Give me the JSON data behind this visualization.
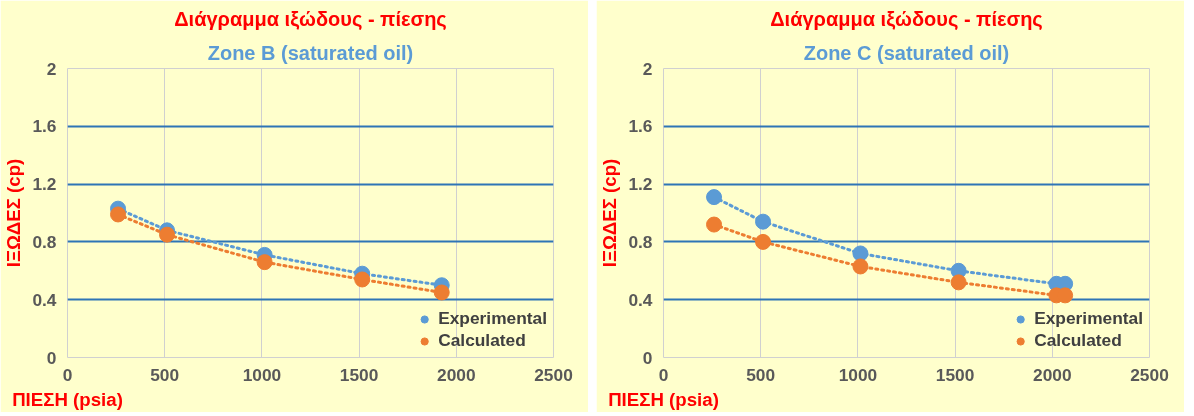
{
  "chart_data": [
    {
      "type": "line",
      "title": "Διάγραμμα ιξώδους - πίεσης",
      "subtitle": "Zone B (saturated oil)",
      "xlabel": "ΠΙΕΣΗ (psia)",
      "ylabel": "ΙΞΩΔΕΣ (cp)",
      "xlim": [
        0,
        2500
      ],
      "xticks": [
        0,
        500,
        1000,
        1500,
        2000,
        2500
      ],
      "ylim": [
        0,
        2
      ],
      "yticks": [
        0,
        0.4,
        0.8,
        1.2,
        1.6,
        2
      ],
      "grid": true,
      "legend": "bottom right",
      "marker": "circle",
      "line_style": "dotted",
      "series": [
        {
          "name": "Experimental",
          "color": "#5b9bd5",
          "x": [
            260,
            512,
            1014,
            1516,
            1925
          ],
          "values": [
            1.03,
            0.88,
            0.71,
            0.58,
            0.5
          ]
        },
        {
          "name": "Calculated",
          "color": "#ed7d31",
          "x": [
            260,
            512,
            1014,
            1516,
            1925
          ],
          "values": [
            0.99,
            0.85,
            0.66,
            0.54,
            0.45
          ]
        }
      ]
    },
    {
      "type": "line",
      "title": "Διάγραμμα ιξώδους - πίεσης",
      "subtitle": "Zone C (saturated oil)",
      "xlabel": "ΠΙΕΣΗ (psia)",
      "ylabel": "ΙΞΩΔΕΣ (cp)",
      "xlim": [
        0,
        2500
      ],
      "xticks": [
        0,
        500,
        1000,
        1500,
        2000,
        2500
      ],
      "ylim": [
        0,
        2
      ],
      "yticks": [
        0,
        0.4,
        0.8,
        1.2,
        1.6,
        2
      ],
      "grid": true,
      "legend": "bottom right",
      "marker": "circle",
      "line_style": "dotted",
      "series": [
        {
          "name": "Experimental",
          "color": "#5b9bd5",
          "x": [
            260,
            512,
            1013,
            1518,
            2021,
            2066
          ],
          "values": [
            1.11,
            0.94,
            0.72,
            0.6,
            0.51,
            0.51
          ]
        },
        {
          "name": "Calculated",
          "color": "#ed7d31",
          "x": [
            260,
            512,
            1013,
            1518,
            2021,
            2066
          ],
          "values": [
            0.92,
            0.8,
            0.63,
            0.52,
            0.43,
            0.43
          ]
        }
      ]
    }
  ]
}
